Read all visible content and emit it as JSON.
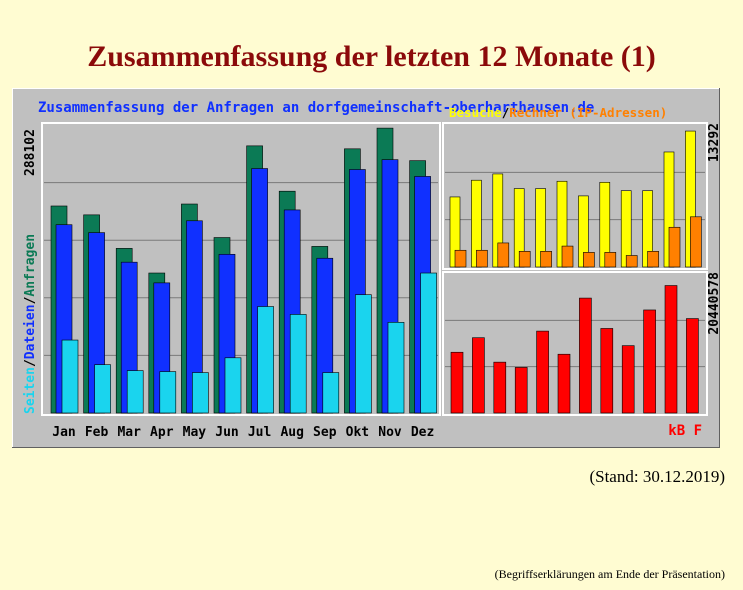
{
  "page": {
    "title": "Zusammenfassung  der letzten 12 Monate (1)",
    "stand": "(Stand: 30.12.2019)",
    "footnote": "(Begriffserklärungen am Ende der Präsentation)"
  },
  "colors": {
    "anfragen": "#0b7a55",
    "dateien": "#1030ff",
    "seiten": "#1ad4ee",
    "besuche": "#ffff00",
    "rechner": "#ff8000",
    "kb": "#ff0000",
    "title_blue": "#1030ff"
  },
  "chart_data": [
    {
      "type": "bar",
      "title": "Zusammenfassung der Anfragen an dorfgemeinschaft-oberharthausen.de",
      "categories": [
        "Jan",
        "Feb",
        "Mar",
        "Apr",
        "May",
        "Jun",
        "Jul",
        "Aug",
        "Sep",
        "Okt",
        "Nov",
        "Dez"
      ],
      "y_max_label": "288102",
      "ylim": [
        0,
        288102
      ],
      "grid": true,
      "legend": [
        "Seiten",
        "Dateien",
        "Anfragen"
      ],
      "legend_separator": "/",
      "series": [
        {
          "name": "Anfragen",
          "values": [
            210000,
            201000,
            167000,
            142000,
            212000,
            178000,
            271000,
            225000,
            169000,
            268000,
            289000,
            256000
          ]
        },
        {
          "name": "Dateien",
          "values": [
            191000,
            183000,
            153000,
            132000,
            195000,
            161000,
            248000,
            206000,
            157000,
            247000,
            257000,
            240000
          ]
        },
        {
          "name": "Seiten",
          "values": [
            74000,
            49000,
            43000,
            42000,
            41000,
            56000,
            108000,
            100000,
            41000,
            120000,
            92000,
            142000
          ]
        }
      ]
    },
    {
      "type": "bar",
      "title": "Besuche / Rechner (IP-Adressen)",
      "title_parts": [
        "Besuche",
        "/",
        "Rechner (IP-Adressen)"
      ],
      "categories": [
        "Jan",
        "Feb",
        "Mar",
        "Apr",
        "May",
        "Jun",
        "Jul",
        "Aug",
        "Sep",
        "Okt",
        "Nov",
        "Dez"
      ],
      "y_max_label": "13292",
      "ylim": [
        0,
        13292
      ],
      "grid": true,
      "series": [
        {
          "name": "Besuche",
          "values": [
            6700,
            8300,
            8900,
            7500,
            7500,
            8200,
            6800,
            8100,
            7300,
            7300,
            11000,
            13000
          ]
        },
        {
          "name": "Rechner (IP-Adressen)",
          "values": [
            1600,
            1600,
            2300,
            1500,
            1500,
            2000,
            1400,
            1400,
            1100,
            1500,
            3800,
            4800
          ]
        }
      ]
    },
    {
      "type": "bar",
      "categories": [
        "Jan",
        "Feb",
        "Mar",
        "Apr",
        "May",
        "Jun",
        "Jul",
        "Aug",
        "Sep",
        "Okt",
        "Nov",
        "Dez"
      ],
      "y_max_label": "20440578",
      "ylim": [
        0,
        20440578
      ],
      "grid": true,
      "unit_label": "kB F",
      "series": [
        {
          "name": "kB F",
          "values": [
            9200000,
            11400000,
            7700000,
            6900000,
            12400000,
            8900000,
            17400000,
            12800000,
            10200000,
            15600000,
            19300000,
            14300000
          ]
        }
      ]
    }
  ]
}
